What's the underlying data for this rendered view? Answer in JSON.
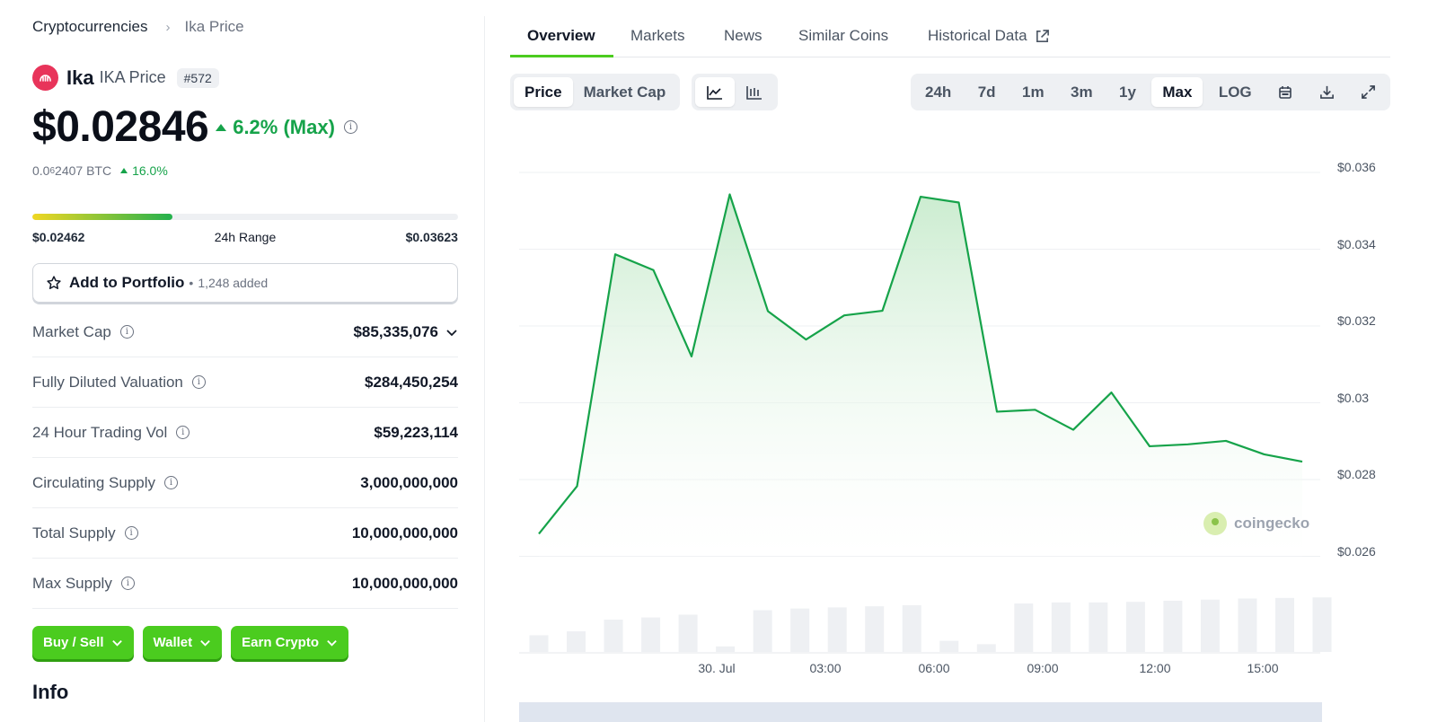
{
  "breadcrumb": {
    "parent": "Cryptocurrencies",
    "current": "Ika Price"
  },
  "coin": {
    "name": "Ika",
    "sub": "IKA Price",
    "rank": "#572",
    "logo_color": "#e8345a"
  },
  "price": {
    "usd": "$0.02846",
    "change": "6.2% (Max)",
    "change_color": "#16a34a"
  },
  "btc": {
    "prefix": "0.0",
    "zeros": "6",
    "rest": "2407 BTC",
    "change": "16.0%"
  },
  "range": {
    "low": "$0.02462",
    "label": "24h Range",
    "high": "$0.03623",
    "fill_fraction": 0.33
  },
  "portfolio": {
    "label": "Add to Portfolio",
    "bullet": "•",
    "count": "1,248 added"
  },
  "stats": [
    {
      "label": "Market Cap",
      "value": "$85,335,076",
      "dropdown": true
    },
    {
      "label": "Fully Diluted Valuation",
      "value": "$284,450,254"
    },
    {
      "label": "24 Hour Trading Vol",
      "value": "$59,223,114"
    },
    {
      "label": "Circulating Supply",
      "value": "3,000,000,000"
    },
    {
      "label": "Total Supply",
      "value": "10,000,000,000"
    },
    {
      "label": "Max Supply",
      "value": "10,000,000,000"
    }
  ],
  "actions": {
    "buy": "Buy / Sell",
    "wallet": "Wallet",
    "earn": "Earn Crypto"
  },
  "info_heading": "Info",
  "tabs": {
    "overview": "Overview",
    "markets": "Markets",
    "news": "News",
    "similar": "Similar Coins",
    "historical": "Historical Data"
  },
  "chart_toggle": {
    "price": "Price",
    "market_cap": "Market Cap"
  },
  "ranges": {
    "r24h": "24h",
    "r7d": "7d",
    "r1m": "1m",
    "r3m": "3m",
    "r1y": "1y",
    "max": "Max",
    "log": "LOG"
  },
  "watermark": "coingecko",
  "colors": {
    "accent_green": "#4bcc1f",
    "line_green": "#16a34a",
    "fill_green": "#c8ebcd"
  },
  "chart_data": {
    "type": "area",
    "y_ticks": [
      "$0.036",
      "$0.034",
      "$0.032",
      "$0.03",
      "$0.028",
      "$0.026"
    ],
    "x_ticks": [
      "30. Jul",
      "03:00",
      "06:00",
      "09:00",
      "12:00",
      "15:00"
    ],
    "ylim": [
      0.025,
      0.0365
    ],
    "values": [
      0.02647,
      0.02771,
      0.03375,
      0.03334,
      0.03109,
      0.03531,
      0.03227,
      0.03153,
      0.03216,
      0.03228,
      0.03525,
      0.0351,
      0.02965,
      0.0297,
      0.02918,
      0.03015,
      0.02875,
      0.0288,
      0.02889,
      0.02854,
      0.02835
    ],
    "volume_relative": [
      0.3,
      0.37,
      0.58,
      0.62,
      0.67,
      0.1,
      0.75,
      0.78,
      0.8,
      0.82,
      0.84,
      0.2,
      0.14,
      0.87,
      0.89,
      0.89,
      0.9,
      0.92,
      0.94,
      0.96,
      0.97,
      0.98
    ]
  }
}
